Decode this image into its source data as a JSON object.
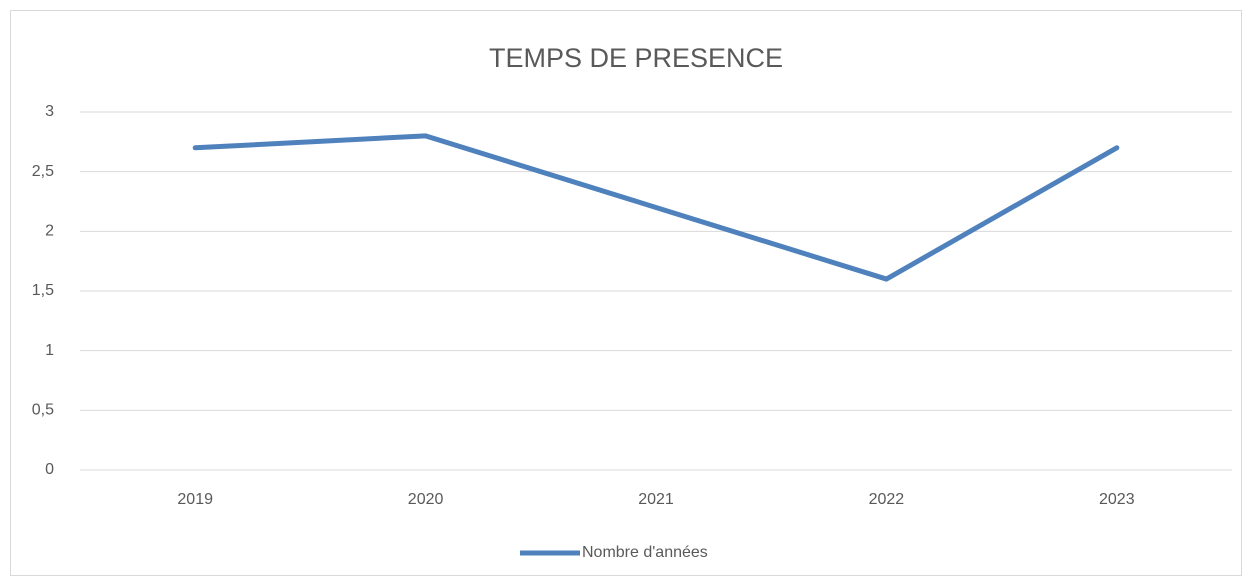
{
  "chart_data": {
    "type": "line",
    "title": "TEMPS DE PRESENCE",
    "categories": [
      "2019",
      "2020",
      "2021",
      "2022",
      "2023"
    ],
    "series": [
      {
        "name": "Nombre d'années",
        "color": "#4f81bd",
        "values": [
          2.7,
          2.8,
          2.2,
          1.6,
          2.7
        ]
      }
    ],
    "ylim": [
      0,
      3
    ],
    "yticks": [
      0,
      {
        "value": 0.5,
        "label": "0,5"
      },
      1,
      {
        "value": 1.5,
        "label": "1,5"
      },
      2,
      {
        "value": 2.5,
        "label": "2,5"
      },
      3
    ],
    "grid": true,
    "legend": "bottom"
  }
}
